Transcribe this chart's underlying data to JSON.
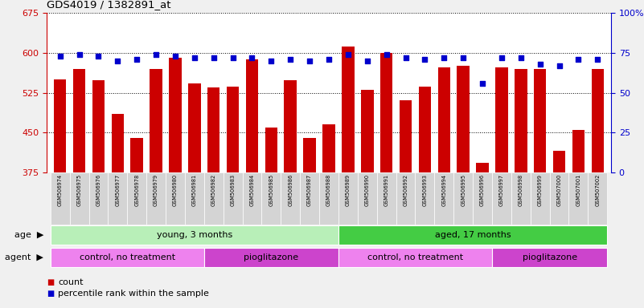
{
  "title": "GDS4019 / 1382891_at",
  "samples": [
    "GSM506974",
    "GSM506975",
    "GSM506976",
    "GSM506977",
    "GSM506978",
    "GSM506979",
    "GSM506980",
    "GSM506981",
    "GSM506982",
    "GSM506983",
    "GSM506984",
    "GSM506985",
    "GSM506986",
    "GSM506987",
    "GSM506988",
    "GSM506989",
    "GSM506990",
    "GSM506991",
    "GSM506992",
    "GSM506993",
    "GSM506994",
    "GSM506995",
    "GSM506996",
    "GSM506997",
    "GSM506998",
    "GSM506999",
    "GSM507000",
    "GSM507001",
    "GSM507002"
  ],
  "counts": [
    550,
    570,
    548,
    485,
    440,
    570,
    590,
    542,
    535,
    536,
    588,
    460,
    548,
    440,
    465,
    612,
    530,
    600,
    510,
    537,
    573,
    575,
    393,
    572,
    570,
    570,
    415,
    455,
    570
  ],
  "percentiles": [
    73,
    74,
    73,
    70,
    71,
    74,
    73,
    72,
    72,
    72,
    72,
    70,
    71,
    70,
    71,
    74,
    70,
    74,
    72,
    71,
    72,
    72,
    56,
    72,
    72,
    68,
    67,
    71,
    71
  ],
  "ylim_left": [
    375,
    675
  ],
  "ylim_right": [
    0,
    100
  ],
  "yticks_left": [
    375,
    450,
    525,
    600,
    675
  ],
  "yticks_right": [
    0,
    25,
    50,
    75,
    100
  ],
  "ytick_labels_right": [
    "0",
    "25",
    "50",
    "75",
    "100%"
  ],
  "bar_color": "#cc0000",
  "dot_color": "#0000cc",
  "bar_width": 0.65,
  "age_groups": [
    {
      "label": "young, 3 months",
      "start": 0,
      "end": 15,
      "color": "#b8efb8"
    },
    {
      "label": "aged, 17 months",
      "start": 15,
      "end": 29,
      "color": "#44cc44"
    }
  ],
  "agent_groups": [
    {
      "label": "control, no treatment",
      "start": 0,
      "end": 8,
      "color": "#ee82ee"
    },
    {
      "label": "pioglitazone",
      "start": 8,
      "end": 15,
      "color": "#cc44cc"
    },
    {
      "label": "control, no treatment",
      "start": 15,
      "end": 23,
      "color": "#ee82ee"
    },
    {
      "label": "pioglitazone",
      "start": 23,
      "end": 29,
      "color": "#cc44cc"
    }
  ],
  "bg_color": "#f0f0f0",
  "plot_bg_color": "#ffffff",
  "left_yaxis_color": "#cc0000",
  "right_yaxis_color": "#0000cc",
  "xtick_bg": "#d4d4d4"
}
